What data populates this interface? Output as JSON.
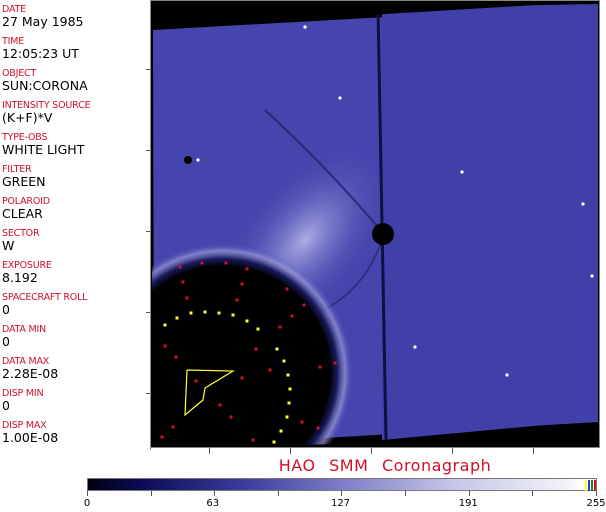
{
  "header_fields": [
    {
      "label": "DATE",
      "value": "27 May 1985"
    },
    {
      "label": "TIME",
      "value": "12:05:23 UT"
    },
    {
      "label": "OBJECT",
      "value": "SUN:CORONA"
    },
    {
      "label": "INTENSITY SOURCE",
      "value": "(K+F)*V"
    },
    {
      "label": "TYPE-OBS",
      "value": "WHITE LIGHT"
    },
    {
      "label": "FILTER",
      "value": "GREEN"
    },
    {
      "label": "POLAROID",
      "value": "CLEAR"
    },
    {
      "label": "SECTOR",
      "value": "W"
    },
    {
      "label": "EXPOSURE",
      "value": "8.192"
    },
    {
      "label": "SPACECRAFT ROLL",
      "value": "0"
    },
    {
      "label": "DATA MIN",
      "value": "0"
    },
    {
      "label": "DATA MAX",
      "value": "2.28E-08"
    },
    {
      "label": "DISP MIN",
      "value": "0"
    },
    {
      "label": "DISP MAX",
      "value": "1.00E-08"
    }
  ],
  "title": "HAO  SMM Coronagraph",
  "colorbar": {
    "tick_labels": [
      "0",
      "63",
      "127",
      "191",
      "255"
    ],
    "min": 0,
    "max": 255,
    "colors": {
      "low": "#000010",
      "mid": "#7d7dc8",
      "high": "#ffffff",
      "marker_red": "#d0102a",
      "marker_yellow": "#ffff30"
    }
  }
}
